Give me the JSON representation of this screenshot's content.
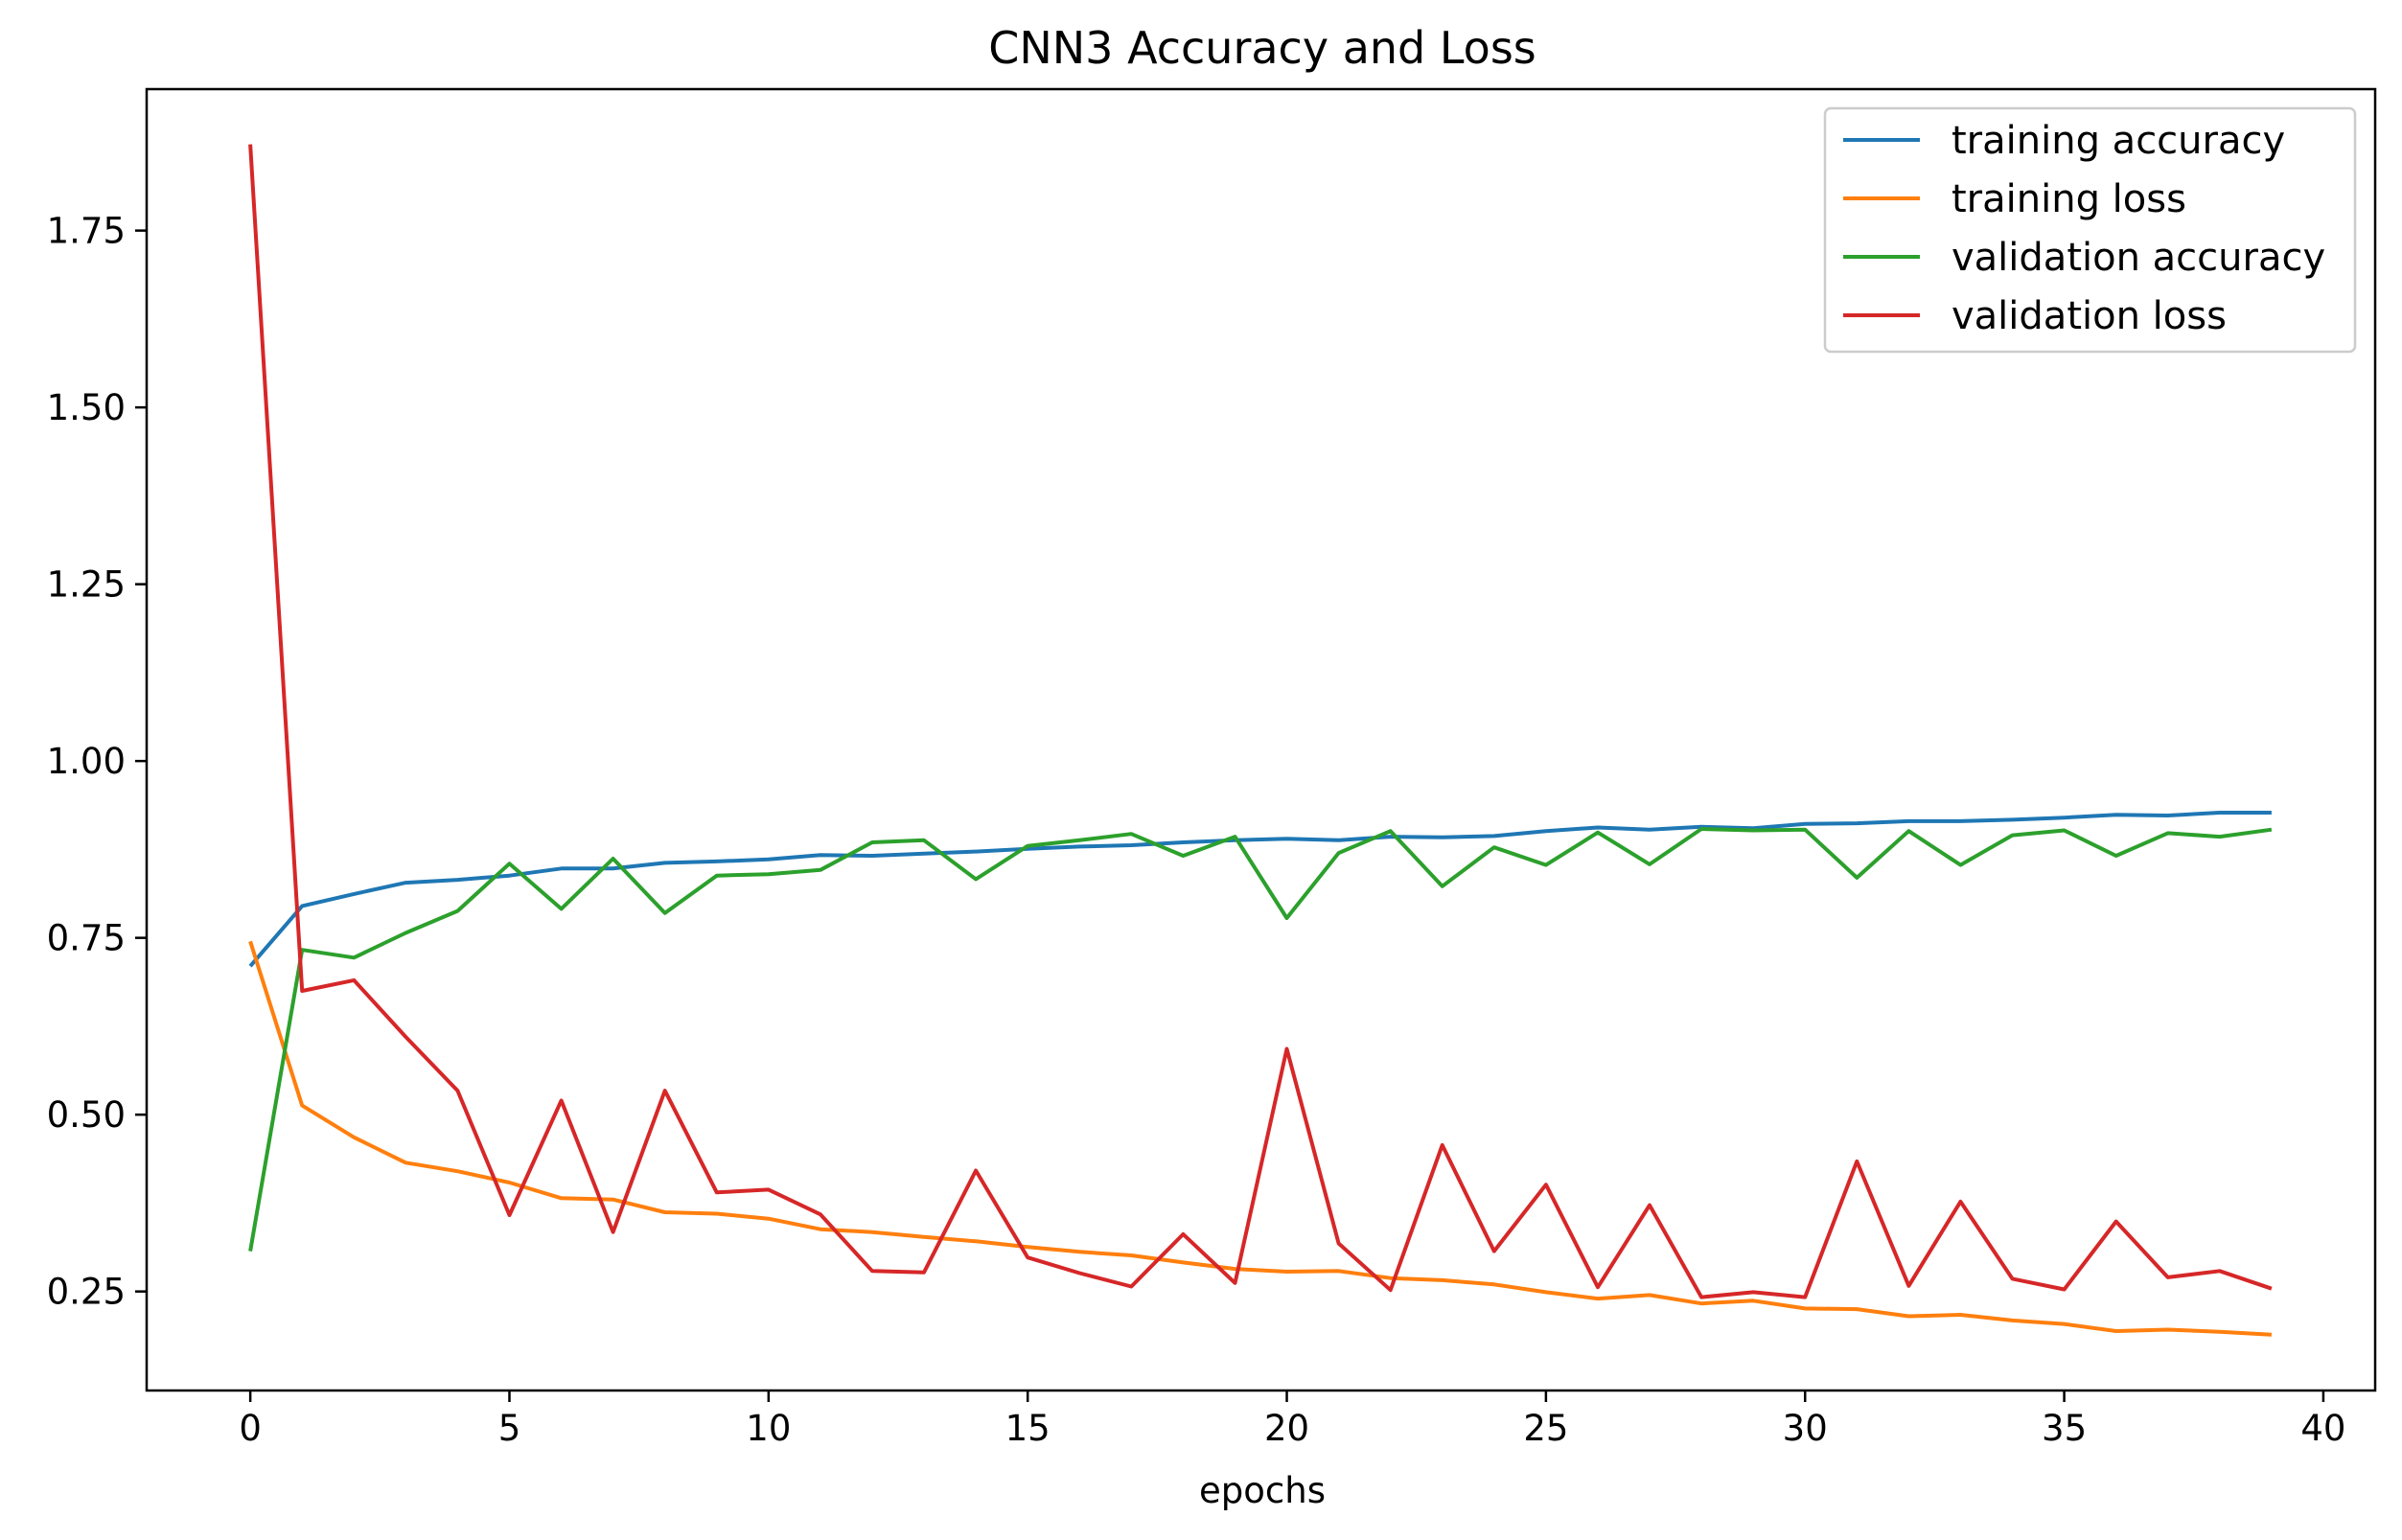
{
  "chart_data": {
    "type": "line",
    "title": "CNN3 Accuracy and Loss",
    "xlabel": "epochs",
    "ylabel": "",
    "xlim": [
      -2,
      41
    ],
    "ylim": [
      0.11,
      1.95
    ],
    "xticks": [
      0,
      5,
      10,
      15,
      20,
      25,
      30,
      35,
      40
    ],
    "xtick_labels": [
      "0",
      "5",
      "10",
      "15",
      "20",
      "25",
      "30",
      "35",
      "40"
    ],
    "yticks": [
      0.25,
      0.5,
      0.75,
      1.0,
      1.25,
      1.5,
      1.75
    ],
    "ytick_labels": [
      "0.25",
      "0.50",
      "0.75",
      "1.00",
      "1.25",
      "1.50",
      "1.75"
    ],
    "grid": false,
    "legend_position": "top-right",
    "x": [
      0,
      1,
      2,
      3,
      4,
      5,
      6,
      7,
      8,
      9,
      10,
      11,
      12,
      13,
      14,
      15,
      16,
      17,
      18,
      19,
      20,
      21,
      22,
      23,
      24,
      25,
      26,
      27,
      28,
      29,
      30,
      31,
      32,
      33,
      34,
      35,
      36,
      37,
      38,
      39
    ],
    "series": [
      {
        "name": "training accuracy",
        "color": "#1f77b4",
        "values": [
          0.71,
          0.795,
          0.812,
          0.828,
          0.832,
          0.838,
          0.848,
          0.848,
          0.856,
          0.858,
          0.861,
          0.867,
          0.866,
          0.869,
          0.872,
          0.876,
          0.879,
          0.881,
          0.885,
          0.888,
          0.89,
          0.888,
          0.893,
          0.892,
          0.894,
          0.901,
          0.906,
          0.903,
          0.907,
          0.905,
          0.911,
          0.912,
          0.915,
          0.915,
          0.917,
          0.92,
          0.924,
          0.923,
          0.927,
          0.927
        ]
      },
      {
        "name": "training loss",
        "color": "#ff7f0e",
        "values": [
          0.745,
          0.513,
          0.468,
          0.432,
          0.42,
          0.404,
          0.382,
          0.38,
          0.362,
          0.36,
          0.353,
          0.338,
          0.334,
          0.327,
          0.321,
          0.313,
          0.306,
          0.301,
          0.291,
          0.282,
          0.278,
          0.279,
          0.269,
          0.266,
          0.26,
          0.249,
          0.24,
          0.245,
          0.233,
          0.237,
          0.226,
          0.225,
          0.215,
          0.217,
          0.209,
          0.204,
          0.194,
          0.196,
          0.193,
          0.189
        ]
      },
      {
        "name": "validation accuracy",
        "color": "#2ca02c",
        "values": [
          0.307,
          0.733,
          0.722,
          0.757,
          0.788,
          0.855,
          0.791,
          0.862,
          0.785,
          0.838,
          0.84,
          0.846,
          0.885,
          0.888,
          0.833,
          0.88,
          0.888,
          0.897,
          0.866,
          0.893,
          0.778,
          0.87,
          0.901,
          0.823,
          0.878,
          0.853,
          0.899,
          0.854,
          0.904,
          0.902,
          0.903,
          0.835,
          0.901,
          0.853,
          0.895,
          0.902,
          0.866,
          0.898,
          0.893,
          0.903
        ]
      },
      {
        "name": "validation loss",
        "color": "#d62728",
        "values": [
          1.872,
          0.675,
          0.69,
          0.61,
          0.534,
          0.358,
          0.52,
          0.334,
          0.534,
          0.39,
          0.394,
          0.359,
          0.279,
          0.277,
          0.421,
          0.298,
          0.276,
          0.257,
          0.331,
          0.262,
          0.593,
          0.318,
          0.252,
          0.457,
          0.307,
          0.401,
          0.256,
          0.372,
          0.242,
          0.249,
          0.242,
          0.434,
          0.258,
          0.377,
          0.268,
          0.253,
          0.349,
          0.27,
          0.279,
          0.254
        ]
      }
    ]
  }
}
